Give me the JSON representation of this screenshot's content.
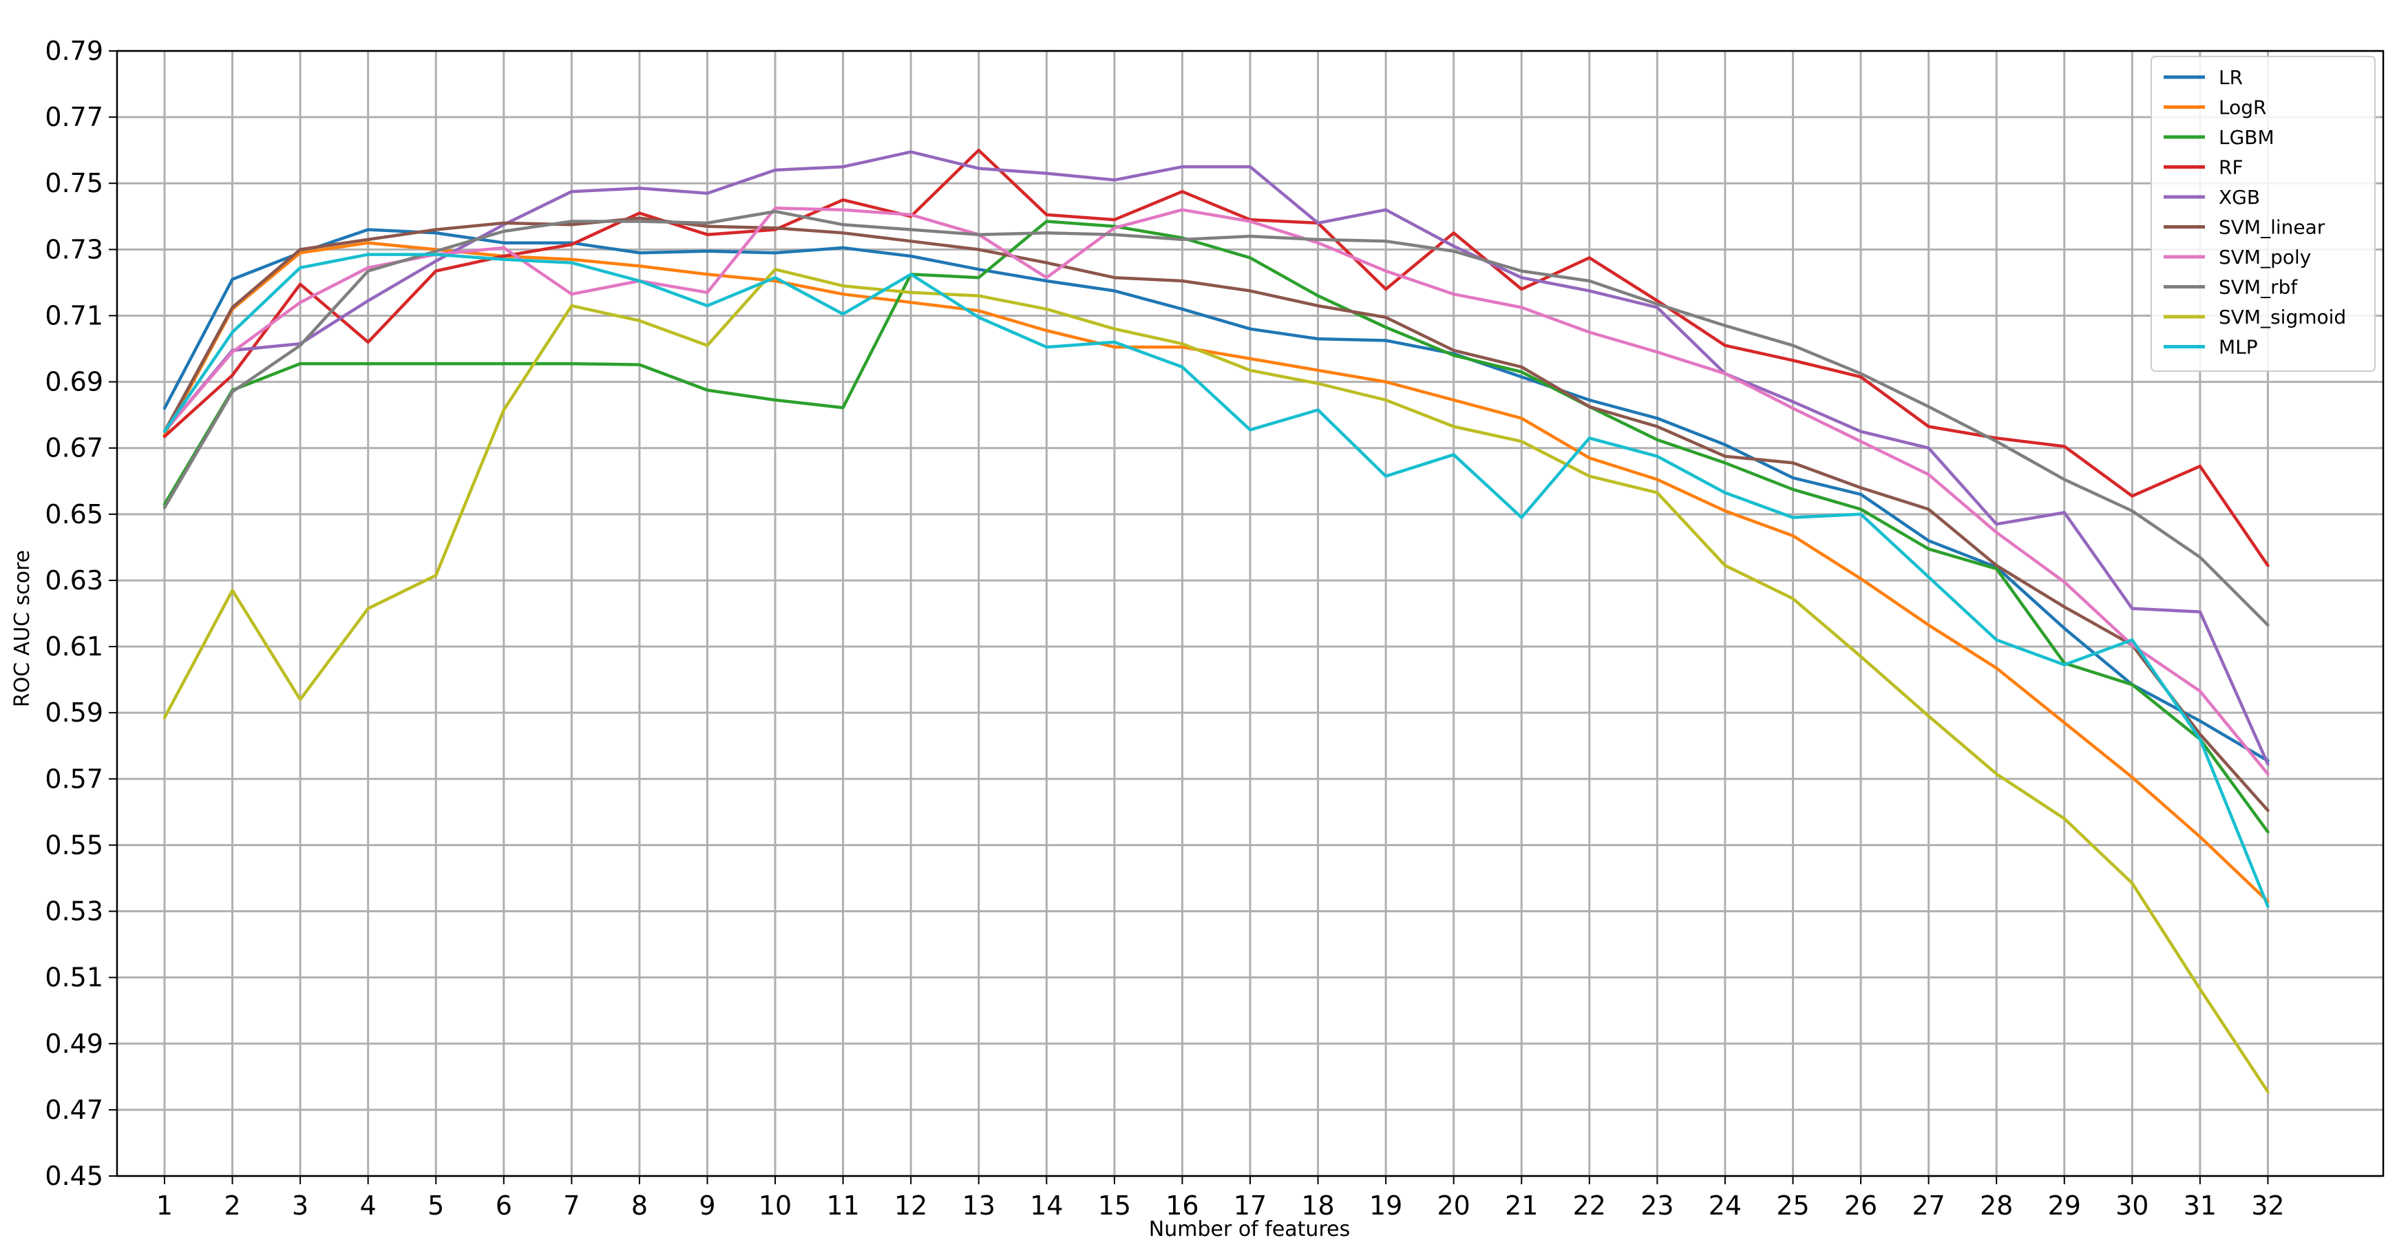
{
  "chart_data": {
    "type": "line",
    "xlabel": "Number of features",
    "ylabel": "ROC AUC score",
    "x": [
      1,
      2,
      3,
      4,
      5,
      6,
      7,
      8,
      9,
      10,
      11,
      12,
      13,
      14,
      15,
      16,
      17,
      18,
      19,
      20,
      21,
      22,
      23,
      24,
      25,
      26,
      27,
      28,
      29,
      30,
      31,
      32
    ],
    "xlim": [
      0.3,
      33.7
    ],
    "ylim": [
      0.45,
      0.79
    ],
    "yticks": [
      0.45,
      0.47,
      0.49,
      0.51,
      0.53,
      0.55,
      0.57,
      0.59,
      0.61,
      0.63,
      0.65,
      0.67,
      0.69,
      0.71,
      0.73,
      0.75,
      0.77,
      0.79
    ],
    "ytick_labels": [
      "0.45",
      "0.47",
      "0.49",
      "0.51",
      "0.53",
      "0.55",
      "0.57",
      "0.59",
      "0.61",
      "0.63",
      "0.65",
      "0.67",
      "0.69",
      "0.71",
      "0.73",
      "0.75",
      "0.77",
      "0.79"
    ],
    "xtick_labels": [
      "1",
      "2",
      "3",
      "4",
      "5",
      "6",
      "7",
      "8",
      "9",
      "10",
      "11",
      "12",
      "13",
      "14",
      "15",
      "16",
      "17",
      "18",
      "19",
      "20",
      "21",
      "22",
      "23",
      "24",
      "25",
      "26",
      "27",
      "28",
      "29",
      "30",
      "31",
      "32"
    ],
    "grid": true,
    "legend_position": "top-right",
    "series": [
      {
        "name": "LR",
        "color": "#1f77b4",
        "values": [
          0.682,
          0.721,
          0.729,
          0.736,
          0.735,
          0.732,
          0.732,
          0.729,
          0.7295,
          0.729,
          0.7305,
          0.728,
          0.724,
          0.7205,
          0.7175,
          0.712,
          0.706,
          0.703,
          0.7025,
          0.6985,
          0.6915,
          0.6845,
          0.679,
          0.671,
          0.661,
          0.656,
          0.642,
          0.634,
          0.6155,
          0.5985,
          0.5875,
          0.5755
        ]
      },
      {
        "name": "LogR",
        "color": "#ff7f0e",
        "values": [
          0.674,
          0.712,
          0.729,
          0.732,
          0.73,
          0.728,
          0.727,
          0.725,
          0.7225,
          0.7205,
          0.7165,
          0.714,
          0.7115,
          0.7055,
          0.7005,
          0.7005,
          0.697,
          0.6935,
          0.69,
          0.6845,
          0.679,
          0.667,
          0.6605,
          0.651,
          0.6435,
          0.6305,
          0.6165,
          0.6035,
          0.587,
          0.5705,
          0.5525,
          0.533
        ]
      },
      {
        "name": "LGBM",
        "color": "#2ca02c",
        "values": [
          0.653,
          0.6875,
          0.6955,
          0.6955,
          0.6955,
          0.6955,
          0.6955,
          0.6952,
          0.6875,
          0.6845,
          0.6822,
          0.7225,
          0.7215,
          0.7385,
          0.737,
          0.7335,
          0.7275,
          0.716,
          0.7065,
          0.698,
          0.693,
          0.6825,
          0.6725,
          0.6655,
          0.6575,
          0.6515,
          0.6395,
          0.6335,
          0.605,
          0.5985,
          0.582,
          0.554
        ]
      },
      {
        "name": "RF",
        "color": "#d62728",
        "values": [
          0.6735,
          0.692,
          0.7195,
          0.702,
          0.7235,
          0.728,
          0.7315,
          0.741,
          0.7345,
          0.736,
          0.745,
          0.74,
          0.76,
          0.7405,
          0.739,
          0.7475,
          0.739,
          0.738,
          0.718,
          0.735,
          0.718,
          0.7275,
          0.7145,
          0.701,
          0.6965,
          0.6915,
          0.6765,
          0.673,
          0.6705,
          0.6555,
          0.6645,
          0.6345
        ]
      },
      {
        "name": "XGB",
        "color": "#9467bd",
        "values": [
          0.675,
          0.6995,
          0.7015,
          0.7145,
          0.7265,
          0.7375,
          0.7475,
          0.7485,
          0.747,
          0.754,
          0.755,
          0.7595,
          0.7545,
          0.753,
          0.751,
          0.755,
          0.755,
          0.738,
          0.742,
          0.731,
          0.7215,
          0.7175,
          0.7125,
          0.6925,
          0.684,
          0.675,
          0.67,
          0.647,
          0.6505,
          0.6215,
          0.6205,
          0.5745
        ]
      },
      {
        "name": "SVM_linear",
        "color": "#8c564b",
        "values": [
          0.675,
          0.7125,
          0.73,
          0.733,
          0.736,
          0.738,
          0.7375,
          0.7395,
          0.737,
          0.7365,
          0.735,
          0.7325,
          0.73,
          0.726,
          0.7215,
          0.7205,
          0.7175,
          0.713,
          0.7095,
          0.6995,
          0.6945,
          0.6825,
          0.6765,
          0.6675,
          0.6655,
          0.658,
          0.6515,
          0.6345,
          0.622,
          0.6105,
          0.5835,
          0.5605
        ]
      },
      {
        "name": "SVM_poly",
        "color": "#e377c2",
        "values": [
          0.675,
          0.699,
          0.714,
          0.7245,
          0.7285,
          0.7305,
          0.7165,
          0.7205,
          0.717,
          0.7425,
          0.742,
          0.7405,
          0.7345,
          0.7215,
          0.7365,
          0.742,
          0.7385,
          0.732,
          0.7235,
          0.7165,
          0.7125,
          0.705,
          0.699,
          0.6925,
          0.682,
          0.672,
          0.662,
          0.6445,
          0.6295,
          0.6105,
          0.5965,
          0.5715
        ]
      },
      {
        "name": "SVM_rbf",
        "color": "#7f7f7f",
        "values": [
          0.652,
          0.687,
          0.701,
          0.7235,
          0.7295,
          0.7355,
          0.7385,
          0.7385,
          0.738,
          0.7415,
          0.7375,
          0.736,
          0.7345,
          0.735,
          0.7345,
          0.733,
          0.734,
          0.733,
          0.7325,
          0.7295,
          0.7235,
          0.7205,
          0.7135,
          0.707,
          0.701,
          0.6925,
          0.6825,
          0.672,
          0.6605,
          0.651,
          0.637,
          0.6165
        ]
      },
      {
        "name": "SVM_sigmoid",
        "color": "#bcbd22",
        "values": [
          0.5885,
          0.627,
          0.594,
          0.6215,
          0.6315,
          0.6815,
          0.713,
          0.7085,
          0.701,
          0.724,
          0.719,
          0.717,
          0.716,
          0.712,
          0.706,
          0.7015,
          0.6935,
          0.6895,
          0.6845,
          0.6765,
          0.672,
          0.6615,
          0.6565,
          0.6345,
          0.6245,
          0.607,
          0.589,
          0.5715,
          0.558,
          0.5385,
          0.5065,
          0.4755
        ]
      },
      {
        "name": "MLP",
        "color": "#17becf",
        "values": [
          0.675,
          0.705,
          0.7245,
          0.7285,
          0.7285,
          0.727,
          0.726,
          0.7205,
          0.713,
          0.7215,
          0.7105,
          0.7225,
          0.7095,
          0.7005,
          0.702,
          0.6945,
          0.6755,
          0.6815,
          0.6615,
          0.668,
          0.649,
          0.673,
          0.6675,
          0.6565,
          0.649,
          0.65,
          0.631,
          0.612,
          0.6045,
          0.612,
          0.582,
          0.5315
        ]
      }
    ]
  }
}
